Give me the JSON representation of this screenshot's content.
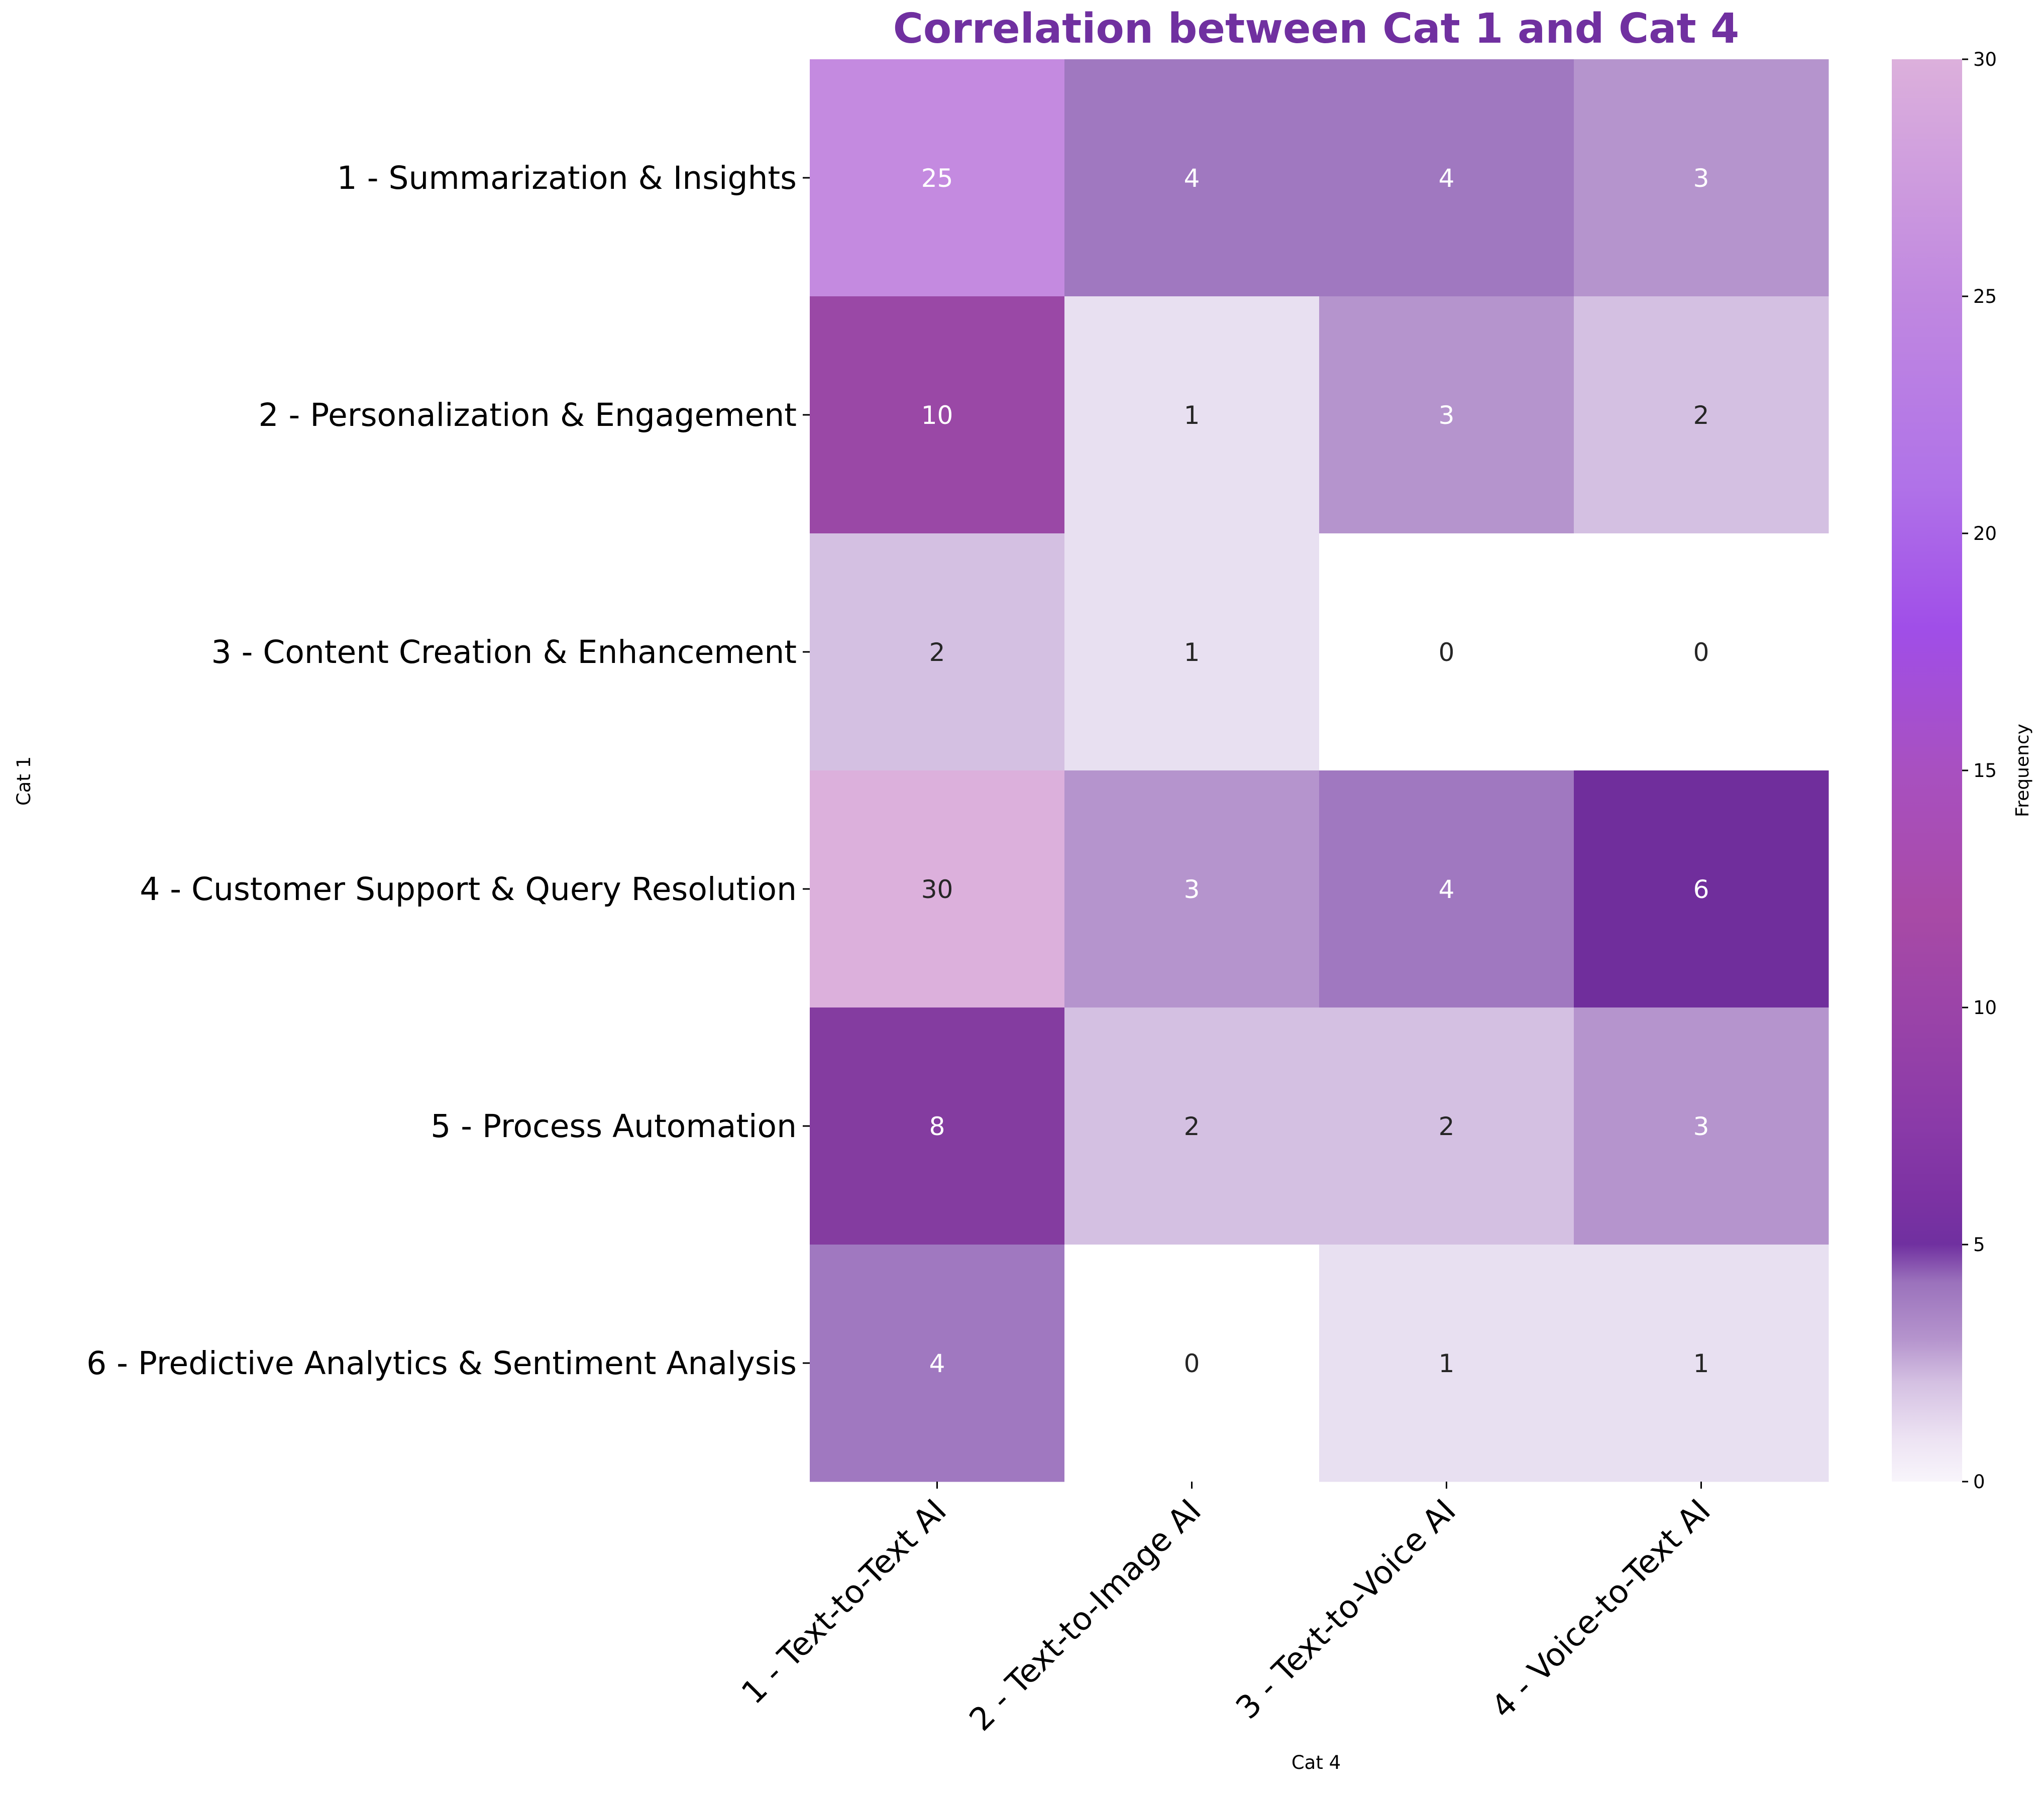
{
  "chart_data": {
    "type": "heatmap",
    "title": "Correlation between Cat 1 and Cat 4",
    "xlabel": "Cat 4",
    "ylabel": "Cat 1",
    "rows": [
      "1 - Summarization & Insights",
      "2 - Personalization & Engagement",
      "3 - Content Creation & Enhancement",
      "4 - Customer Support & Query Resolution",
      "5 - Process Automation",
      "6 - Predictive Analytics & Sentiment Analysis"
    ],
    "columns": [
      "1 - Text-to-Text AI",
      "2 - Text-to-Image AI",
      "3 - Text-to-Voice AI",
      "4 - Voice-to-Text AI"
    ],
    "values": [
      [
        25,
        4,
        4,
        3
      ],
      [
        10,
        1,
        3,
        2
      ],
      [
        2,
        1,
        0,
        0
      ],
      [
        30,
        3,
        4,
        6
      ],
      [
        8,
        2,
        2,
        3
      ],
      [
        4,
        0,
        1,
        1
      ]
    ],
    "colorbar": {
      "label": "Frequency",
      "range": [
        0,
        30
      ],
      "ticks": [
        "0",
        "5",
        "10",
        "15",
        "20",
        "25",
        "30"
      ]
    },
    "colors": {
      "title": "#7030a0"
    }
  }
}
